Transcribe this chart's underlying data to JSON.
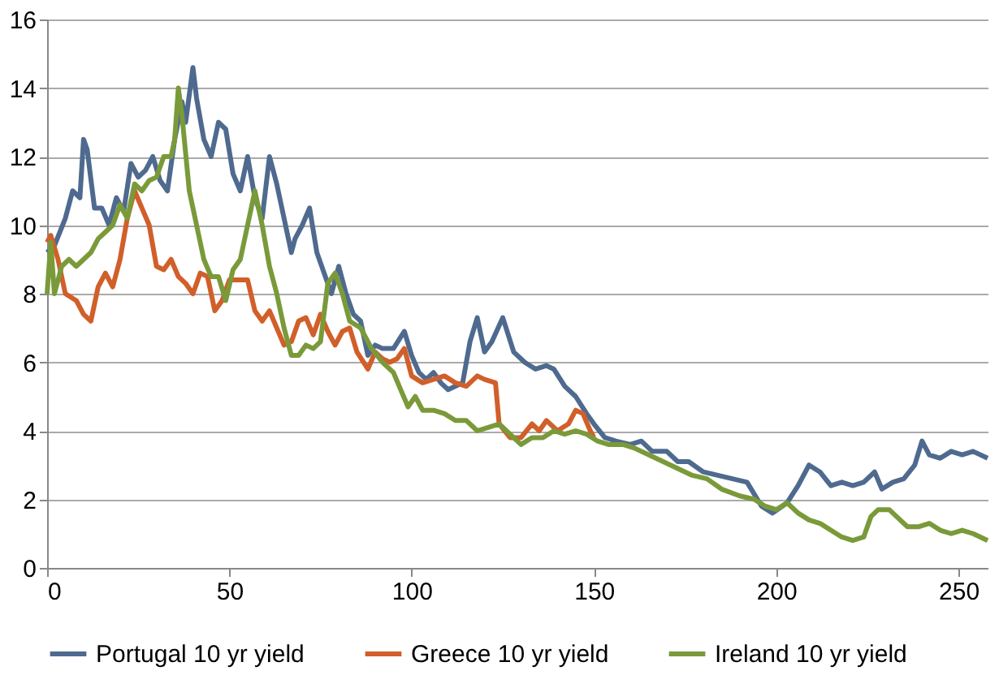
{
  "chart_data": {
    "type": "line",
    "xlim": [
      0,
      258
    ],
    "xticks": [
      0,
      50,
      100,
      150,
      200,
      250
    ],
    "ylim": [
      0,
      16
    ],
    "yticks": [
      0,
      2,
      4,
      6,
      8,
      10,
      12,
      14,
      16
    ],
    "grid": "y",
    "legend": "bottom",
    "marker": "none",
    "line_style": "solid",
    "series": [
      {
        "name": "Portugal 10 yr yield",
        "color": "#4f6a8f",
        "x": [
          0,
          2,
          5,
          7,
          9,
          10,
          11,
          13,
          15,
          17,
          19,
          21,
          23,
          25,
          27,
          29,
          31,
          33,
          35,
          37,
          38,
          40,
          41,
          43,
          45,
          47,
          49,
          51,
          53,
          55,
          57,
          59,
          61,
          63,
          65,
          67,
          68,
          70,
          72,
          74,
          76,
          78,
          80,
          82,
          84,
          86,
          88,
          90,
          92,
          95,
          98,
          100,
          102,
          104,
          106,
          108,
          110,
          112,
          114,
          116,
          118,
          120,
          122,
          125,
          128,
          131,
          134,
          137,
          139,
          142,
          145,
          148,
          150,
          153,
          156,
          160,
          163,
          166,
          170,
          173,
          176,
          180,
          184,
          188,
          192,
          196,
          199,
          203,
          206,
          209,
          212,
          215,
          218,
          221,
          224,
          227,
          229,
          232,
          235,
          238,
          240,
          242,
          245,
          248,
          251,
          254,
          258
        ],
        "values": [
          9.2,
          9.4,
          10.2,
          11.0,
          10.8,
          12.5,
          12.2,
          10.5,
          10.5,
          10.0,
          10.8,
          10.4,
          11.8,
          11.4,
          11.6,
          12.0,
          11.3,
          11.0,
          12.5,
          13.6,
          13.0,
          14.6,
          13.7,
          12.5,
          12.0,
          13.0,
          12.8,
          11.5,
          11.0,
          12.0,
          10.8,
          10.2,
          12.0,
          11.2,
          10.2,
          9.2,
          9.6,
          10.0,
          10.5,
          9.2,
          8.6,
          8.0,
          8.8,
          8.0,
          7.4,
          7.2,
          6.2,
          6.5,
          6.4,
          6.4,
          6.9,
          6.2,
          5.7,
          5.5,
          5.7,
          5.4,
          5.2,
          5.3,
          5.4,
          6.6,
          7.3,
          6.3,
          6.6,
          7.3,
          6.3,
          6.0,
          5.8,
          5.9,
          5.8,
          5.3,
          5.0,
          4.5,
          4.2,
          3.8,
          3.7,
          3.6,
          3.7,
          3.4,
          3.4,
          3.1,
          3.1,
          2.8,
          2.7,
          2.6,
          2.5,
          1.8,
          1.6,
          1.9,
          2.4,
          3.0,
          2.8,
          2.4,
          2.5,
          2.4,
          2.5,
          2.8,
          2.3,
          2.5,
          2.6,
          3.0,
          3.7,
          3.3,
          3.2,
          3.4,
          3.3,
          3.4,
          3.2
        ]
      },
      {
        "name": "Greece 10 yr yield",
        "color": "#d15f2a",
        "x": [
          0,
          1,
          3,
          5,
          8,
          10,
          12,
          14,
          16,
          18,
          20,
          22,
          24,
          26,
          28,
          30,
          32,
          34,
          36,
          38,
          40,
          42,
          44,
          46,
          48,
          50,
          52,
          55,
          57,
          59,
          61,
          63,
          65,
          67,
          69,
          71,
          73,
          75,
          77,
          79,
          81,
          83,
          85,
          88,
          90,
          92,
          94,
          96,
          98,
          100,
          103,
          106,
          109,
          112,
          115,
          118,
          120,
          123,
          124,
          127,
          130,
          133,
          135,
          137,
          140,
          143,
          145,
          147,
          149,
          150
        ],
        "values": [
          9.5,
          9.7,
          9.0,
          8.0,
          7.8,
          7.4,
          7.2,
          8.2,
          8.6,
          8.2,
          9.0,
          10.2,
          11.0,
          10.5,
          10.0,
          8.8,
          8.7,
          9.0,
          8.5,
          8.3,
          8.0,
          8.6,
          8.5,
          7.5,
          7.8,
          8.4,
          8.4,
          8.4,
          7.5,
          7.2,
          7.5,
          7.0,
          6.5,
          6.6,
          7.2,
          7.3,
          6.8,
          7.4,
          6.9,
          6.5,
          6.9,
          7.0,
          6.3,
          5.8,
          6.3,
          6.1,
          6.0,
          6.1,
          6.4,
          5.6,
          5.4,
          5.5,
          5.6,
          5.4,
          5.3,
          5.6,
          5.5,
          5.4,
          4.2,
          3.8,
          3.8,
          4.2,
          4.0,
          4.3,
          4.0,
          4.2,
          4.6,
          4.5,
          4.0,
          3.8
        ]
      },
      {
        "name": "Ireland 10 yr yield",
        "color": "#7a9a3a",
        "x": [
          0,
          1,
          2,
          4,
          6,
          8,
          10,
          12,
          14,
          16,
          18,
          20,
          22,
          24,
          26,
          28,
          30,
          32,
          34,
          35,
          36,
          37,
          39,
          41,
          43,
          45,
          47,
          49,
          51,
          53,
          55,
          57,
          59,
          61,
          63,
          65,
          67,
          69,
          71,
          73,
          75,
          77,
          79,
          81,
          83,
          86,
          89,
          92,
          95,
          97,
          99,
          101,
          103,
          106,
          109,
          112,
          115,
          118,
          121,
          124,
          127,
          130,
          133,
          136,
          139,
          142,
          145,
          148,
          151,
          154,
          158,
          161,
          165,
          169,
          173,
          177,
          181,
          185,
          190,
          194,
          197,
          200,
          203,
          206,
          209,
          212,
          215,
          218,
          221,
          224,
          226,
          228,
          231,
          233,
          236,
          239,
          242,
          245,
          248,
          251,
          254,
          258
        ],
        "values": [
          8.0,
          9.5,
          8.0,
          8.8,
          9.0,
          8.8,
          9.0,
          9.2,
          9.6,
          9.8,
          10.0,
          10.6,
          10.2,
          11.2,
          11.0,
          11.3,
          11.4,
          12.0,
          12.0,
          12.5,
          14.0,
          13.2,
          11.0,
          10.0,
          9.0,
          8.5,
          8.5,
          7.8,
          8.7,
          9.0,
          10.0,
          11.0,
          10.0,
          8.8,
          8.0,
          7.0,
          6.2,
          6.2,
          6.5,
          6.4,
          6.6,
          8.3,
          8.6,
          8.0,
          7.2,
          7.0,
          6.4,
          6.0,
          5.7,
          5.2,
          4.7,
          5.0,
          4.6,
          4.6,
          4.5,
          4.3,
          4.3,
          4.0,
          4.1,
          4.2,
          3.9,
          3.6,
          3.8,
          3.8,
          4.0,
          3.9,
          4.0,
          3.9,
          3.7,
          3.6,
          3.6,
          3.5,
          3.3,
          3.1,
          2.9,
          2.7,
          2.6,
          2.3,
          2.1,
          2.0,
          1.8,
          1.7,
          1.9,
          1.6,
          1.4,
          1.3,
          1.1,
          0.9,
          0.8,
          0.9,
          1.5,
          1.7,
          1.7,
          1.5,
          1.2,
          1.2,
          1.3,
          1.1,
          1.0,
          1.1,
          1.0,
          0.8
        ]
      }
    ]
  }
}
